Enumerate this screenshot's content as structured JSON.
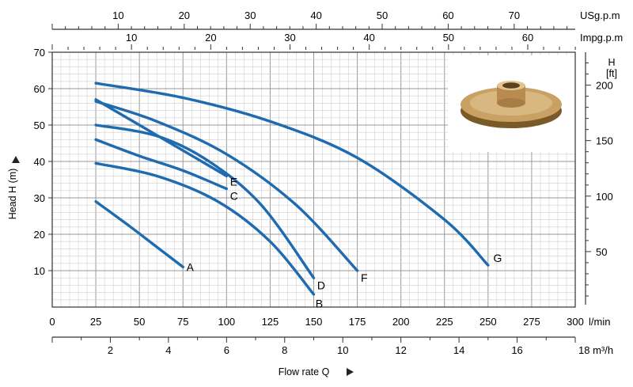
{
  "chart_data": {
    "type": "line",
    "x_unit_label": "l/min",
    "xlim": [
      0,
      300
    ],
    "ylim": [
      0,
      70
    ],
    "ylabel": "Head H (m)",
    "xlabel": "Flow rate Q",
    "y_right_label": [
      "H",
      "[ft]"
    ],
    "y_ticks": [
      10,
      20,
      30,
      40,
      50,
      60,
      70
    ],
    "x_ticks": [
      0,
      25,
      50,
      75,
      100,
      125,
      150,
      175,
      200,
      225,
      250,
      275,
      300
    ],
    "ft_ticks": [
      50,
      100,
      150,
      200
    ],
    "m3h_ticks": [
      2,
      4,
      6,
      8,
      10,
      12,
      14,
      16
    ],
    "m3h_last_label": "18 m³/h",
    "usgpm_label": "USg.p.m",
    "usgpm_ticks": [
      10,
      20,
      30,
      40,
      50,
      60,
      70
    ],
    "impgpm_label": "Impg.p.m",
    "impgpm_ticks": [
      10,
      20,
      30,
      40,
      50,
      60
    ],
    "grid": true,
    "line_color": "#1e6bb0",
    "series": [
      {
        "name": "A",
        "x": [
          25,
          45,
          60,
          75
        ],
        "y": [
          29,
          22,
          16.5,
          11
        ]
      },
      {
        "name": "B",
        "x": [
          25,
          60,
          95,
          125,
          150
        ],
        "y": [
          39.5,
          36,
          29,
          18,
          3.5
        ]
      },
      {
        "name": "C",
        "x": [
          25,
          50,
          75,
          100
        ],
        "y": [
          46,
          41.5,
          37.5,
          32.5
        ]
      },
      {
        "name": "D",
        "x": [
          25,
          60,
          90,
          120,
          150
        ],
        "y": [
          50,
          47,
          40,
          28,
          8
        ]
      },
      {
        "name": "E",
        "x": [
          25,
          50,
          75,
          100
        ],
        "y": [
          57,
          50,
          43,
          36
        ]
      },
      {
        "name": "F",
        "x": [
          25,
          60,
          100,
          140,
          175
        ],
        "y": [
          56.5,
          51,
          42,
          28,
          10
        ]
      },
      {
        "name": "G",
        "x": [
          25,
          75,
          125,
          175,
          225,
          250
        ],
        "y": [
          61.5,
          57.5,
          51,
          41,
          24,
          11.5
        ]
      }
    ],
    "series_label_offsets": {
      "A": [
        2,
        0
      ],
      "B": [
        1,
        -2.5
      ],
      "C": [
        2,
        -2
      ],
      "D": [
        2,
        -2
      ],
      "E": [
        2,
        -1.5
      ],
      "F": [
        2,
        -2
      ],
      "G": [
        3,
        2
      ]
    }
  }
}
